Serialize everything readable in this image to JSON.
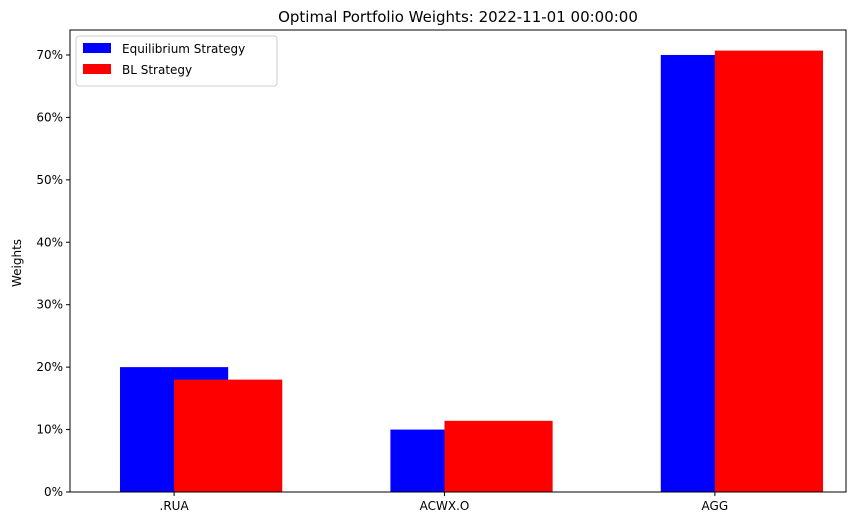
{
  "chart_data": {
    "type": "bar",
    "title": "Optimal Portfolio Weights: 2022-11-01 00:00:00",
    "xlabel": "",
    "ylabel": "Weights",
    "categories": [
      ".RUA",
      "ACWX.O",
      "AGG"
    ],
    "series": [
      {
        "name": "Equilibrium Strategy",
        "color": "#0000ff",
        "values": [
          0.2,
          0.1,
          0.7
        ]
      },
      {
        "name": "BL Strategy",
        "color": "#ff0000",
        "values": [
          0.18,
          0.114,
          0.707
        ]
      }
    ],
    "ylim": [
      0,
      0.74
    ],
    "yticks": [
      0,
      0.1,
      0.2,
      0.3,
      0.4,
      0.5,
      0.6,
      0.7
    ],
    "ytick_labels": [
      "0%",
      "10%",
      "20%",
      "30%",
      "40%",
      "50%",
      "60%",
      "70%"
    ],
    "grid": false,
    "legend_position": "top-left"
  }
}
